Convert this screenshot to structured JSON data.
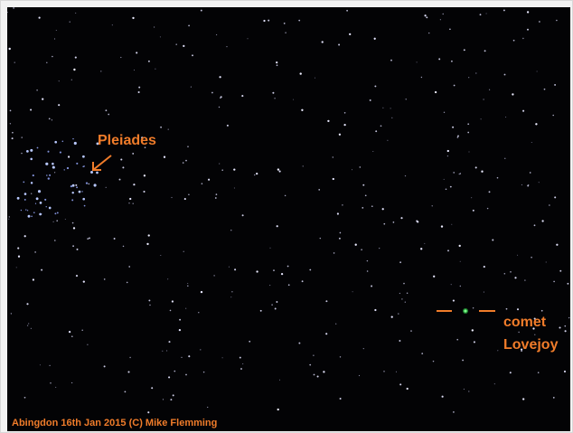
{
  "annotations": {
    "cluster_label": "Pleiades",
    "comet_label": [
      "comet",
      "Lovejoy"
    ]
  },
  "credit": "Abingdon 16th Jan 2015 (C) Mike Flemming"
}
